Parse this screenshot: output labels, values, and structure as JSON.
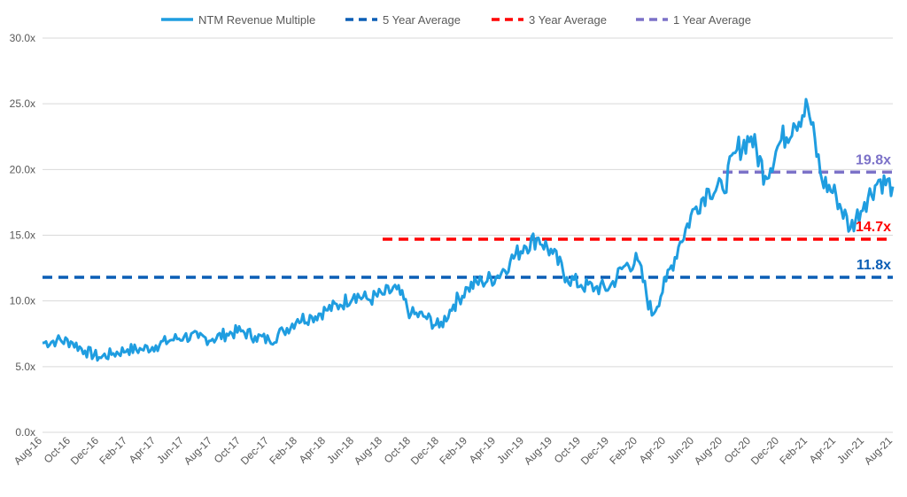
{
  "chart_data": {
    "type": "line",
    "title": "",
    "xlabel": "",
    "ylabel": "",
    "ylim": [
      0,
      30
    ],
    "y_ticks": [
      "0.0x",
      "5.0x",
      "10.0x",
      "15.0x",
      "20.0x",
      "25.0x",
      "30.0x"
    ],
    "x_ticks": [
      "Aug-16",
      "Oct-16",
      "Dec-16",
      "Feb-17",
      "Apr-17",
      "Jun-17",
      "Aug-17",
      "Oct-17",
      "Dec-17",
      "Feb-18",
      "Apr-18",
      "Jun-18",
      "Aug-18",
      "Oct-18",
      "Dec-18",
      "Feb-19",
      "Apr-19",
      "Jun-19",
      "Aug-19",
      "Oct-19",
      "Dec-19",
      "Feb-20",
      "Apr-20",
      "Jun-20",
      "Aug-20",
      "Oct-20",
      "Dec-20",
      "Feb-21",
      "Apr-21",
      "Jun-21",
      "Aug-21"
    ],
    "grid": "horizontal",
    "legend_position": "top",
    "series": [
      {
        "name": "NTM Revenue Multiple",
        "style": "solid",
        "color": "#1f9de0",
        "x": [
          "Aug-16",
          "Sep-16",
          "Oct-16",
          "Nov-16",
          "Dec-16",
          "Jan-17",
          "Feb-17",
          "Mar-17",
          "Apr-17",
          "May-17",
          "Jun-17",
          "Jul-17",
          "Aug-17",
          "Sep-17",
          "Oct-17",
          "Nov-17",
          "Dec-17",
          "Jan-18",
          "Feb-18",
          "Mar-18",
          "Apr-18",
          "May-18",
          "Jun-18",
          "Jul-18",
          "Aug-18",
          "Sep-18",
          "Oct-18",
          "Nov-18",
          "Dec-18",
          "Jan-19",
          "Feb-19",
          "Mar-19",
          "Apr-19",
          "May-19",
          "Jun-19",
          "Jul-19",
          "Aug-19",
          "Sep-19",
          "Oct-19",
          "Nov-19",
          "Dec-19",
          "Jan-20",
          "Feb-20",
          "Mar-20",
          "Apr-20",
          "May-20",
          "Jun-20",
          "Jul-20",
          "Aug-20",
          "Sep-20",
          "Oct-20",
          "Nov-20",
          "Dec-20",
          "Jan-21",
          "Feb-21",
          "Mar-21",
          "Apr-21",
          "May-21",
          "Jun-21",
          "Jul-21",
          "Aug-21"
        ],
        "values": [
          6.8,
          7.0,
          6.9,
          6.2,
          5.7,
          6.0,
          6.3,
          6.3,
          6.6,
          7.0,
          7.3,
          7.2,
          7.1,
          7.5,
          7.7,
          7.3,
          7.0,
          7.7,
          8.6,
          8.8,
          9.3,
          9.7,
          10.5,
          10.1,
          10.5,
          10.9,
          9.0,
          8.8,
          8.0,
          9.7,
          11.0,
          11.5,
          11.8,
          13.0,
          14.2,
          14.8,
          13.6,
          11.8,
          11.2,
          11.0,
          11.0,
          12.6,
          13.1,
          8.9,
          11.5,
          14.5,
          17.0,
          18.5,
          18.5,
          21.5,
          22.5,
          19.5,
          22.0,
          23.5,
          24.8,
          19.2,
          18.0,
          15.5,
          17.5,
          19.2,
          18.7
        ]
      },
      {
        "name": "5 Year Average",
        "style": "dashed",
        "color": "#0b5eb5",
        "value": 11.8,
        "x_start": "Aug-16",
        "x_end": "Aug-21",
        "label": "11.8x"
      },
      {
        "name": "3 Year Average",
        "style": "dashed",
        "color": "#ff0000",
        "value": 14.7,
        "x_start": "Aug-18",
        "x_end": "Aug-21",
        "label": "14.7x"
      },
      {
        "name": "1 Year Average",
        "style": "dashed",
        "color": "#7c72c8",
        "value": 19.8,
        "x_start": "Aug-20",
        "x_end": "Aug-21",
        "label": "19.8x"
      }
    ]
  }
}
